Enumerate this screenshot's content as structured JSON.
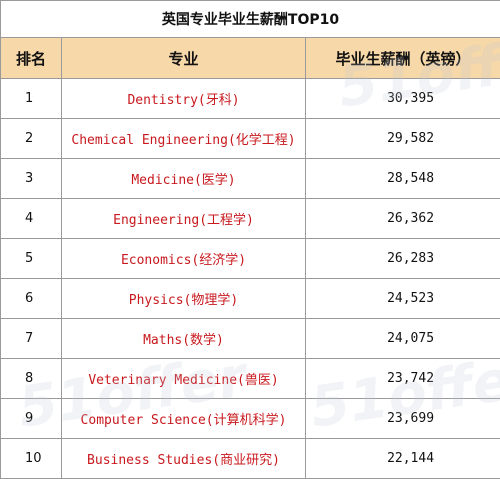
{
  "title": "英国专业毕业生薪酬TOP10",
  "headers": {
    "rank": "排名",
    "major": "专业",
    "salary": "毕业生薪酬（英镑）"
  },
  "rows": [
    {
      "rank": "1",
      "major": "Dentistry(牙科)",
      "salary": "30,395"
    },
    {
      "rank": "2",
      "major": "Chemical Engineering(化学工程)",
      "salary": "29,582"
    },
    {
      "rank": "3",
      "major": "Medicine(医学)",
      "salary": "28,548"
    },
    {
      "rank": "4",
      "major": "Engineering(工程学)",
      "salary": "26,362"
    },
    {
      "rank": "5",
      "major": "Economics(经济学)",
      "salary": "26,283"
    },
    {
      "rank": "6",
      "major": "Physics(物理学)",
      "salary": "24,523"
    },
    {
      "rank": "7",
      "major": "Maths(数学)",
      "salary": "24,075"
    },
    {
      "rank": "8",
      "major": "Veterinary Medicine(兽医)",
      "salary": "23,742"
    },
    {
      "rank": "9",
      "major": "Computer Science(计算机科学)",
      "salary": "23,699"
    },
    {
      "rank": "10",
      "major": "Business Studies(商业研究)",
      "salary": "22,144"
    }
  ],
  "watermark_text": "51offer",
  "colors": {
    "header_bg": "#f7d8a8",
    "major_text": "#c8191e",
    "border": "#9a9a9a"
  }
}
